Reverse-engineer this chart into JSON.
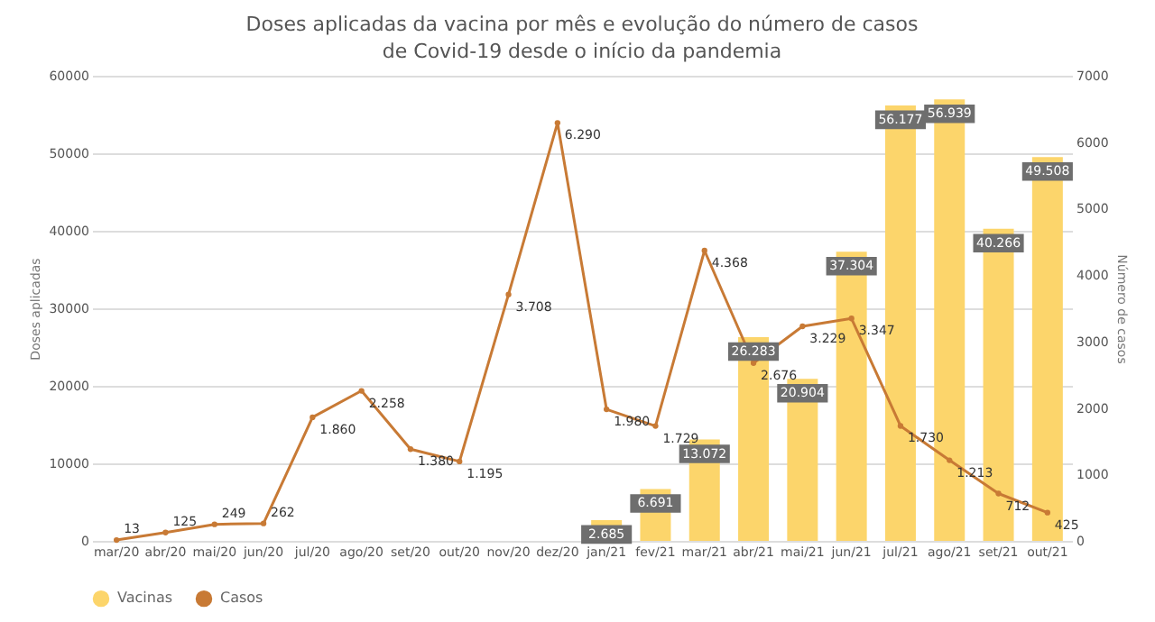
{
  "chart_data": {
    "type": "bar",
    "title": "Doses aplicadas da vacina por mês e evolução do número de casos de Covid-19 desde o início da pandemia",
    "categories": [
      "mar/20",
      "abr/20",
      "mai/20",
      "jun/20",
      "jul/20",
      "ago/20",
      "set/20",
      "out/20",
      "nov/20",
      "dez/20",
      "jan/21",
      "fev/21",
      "mar/21",
      "abr/21",
      "mai/21",
      "jun/21",
      "jul/21",
      "ago/21",
      "set/21",
      "out/21"
    ],
    "series": [
      {
        "name": "Vacinas",
        "color": "#fcd56b",
        "values": [
          null,
          null,
          null,
          null,
          null,
          null,
          null,
          null,
          null,
          null,
          2685,
          6691,
          13072,
          26283,
          20904,
          37304,
          56177,
          56939,
          40266,
          49508
        ],
        "value_labels": [
          null,
          null,
          null,
          null,
          null,
          null,
          null,
          null,
          null,
          null,
          "2.685",
          "6.691",
          "13.072",
          "26.283",
          "20.904",
          "37.304",
          "56.177",
          "56.939",
          "40.266",
          "49.508"
        ]
      },
      {
        "name": "Casos",
        "type": "line",
        "axis": "y2",
        "color": "#c87a35",
        "marker": "circle",
        "values": [
          13,
          125,
          249,
          262,
          1860,
          2258,
          1380,
          1195,
          3708,
          6290,
          1980,
          1729,
          4368,
          2676,
          3229,
          3347,
          1730,
          1213,
          712,
          425
        ],
        "value_labels": [
          "13",
          "125",
          "249",
          "262",
          "1.860",
          "2.258",
          "1.380",
          "1.195",
          "3.708",
          "6.290",
          "1.980",
          "1.729",
          "4.368",
          "2.676",
          "3.229",
          "3.347",
          "1.730",
          "1.213",
          "712",
          "425"
        ]
      }
    ],
    "ylabel": "Doses aplicadas",
    "y2label": "Número de casos",
    "ylim": [
      0,
      60000
    ],
    "yticks": [
      0,
      10000,
      20000,
      30000,
      40000,
      50000,
      60000
    ],
    "y2lim": [
      0,
      7000
    ],
    "y2ticks": [
      0,
      1000,
      2000,
      3000,
      4000,
      5000,
      6000,
      7000
    ],
    "grid": "y",
    "legend": "bottom"
  }
}
